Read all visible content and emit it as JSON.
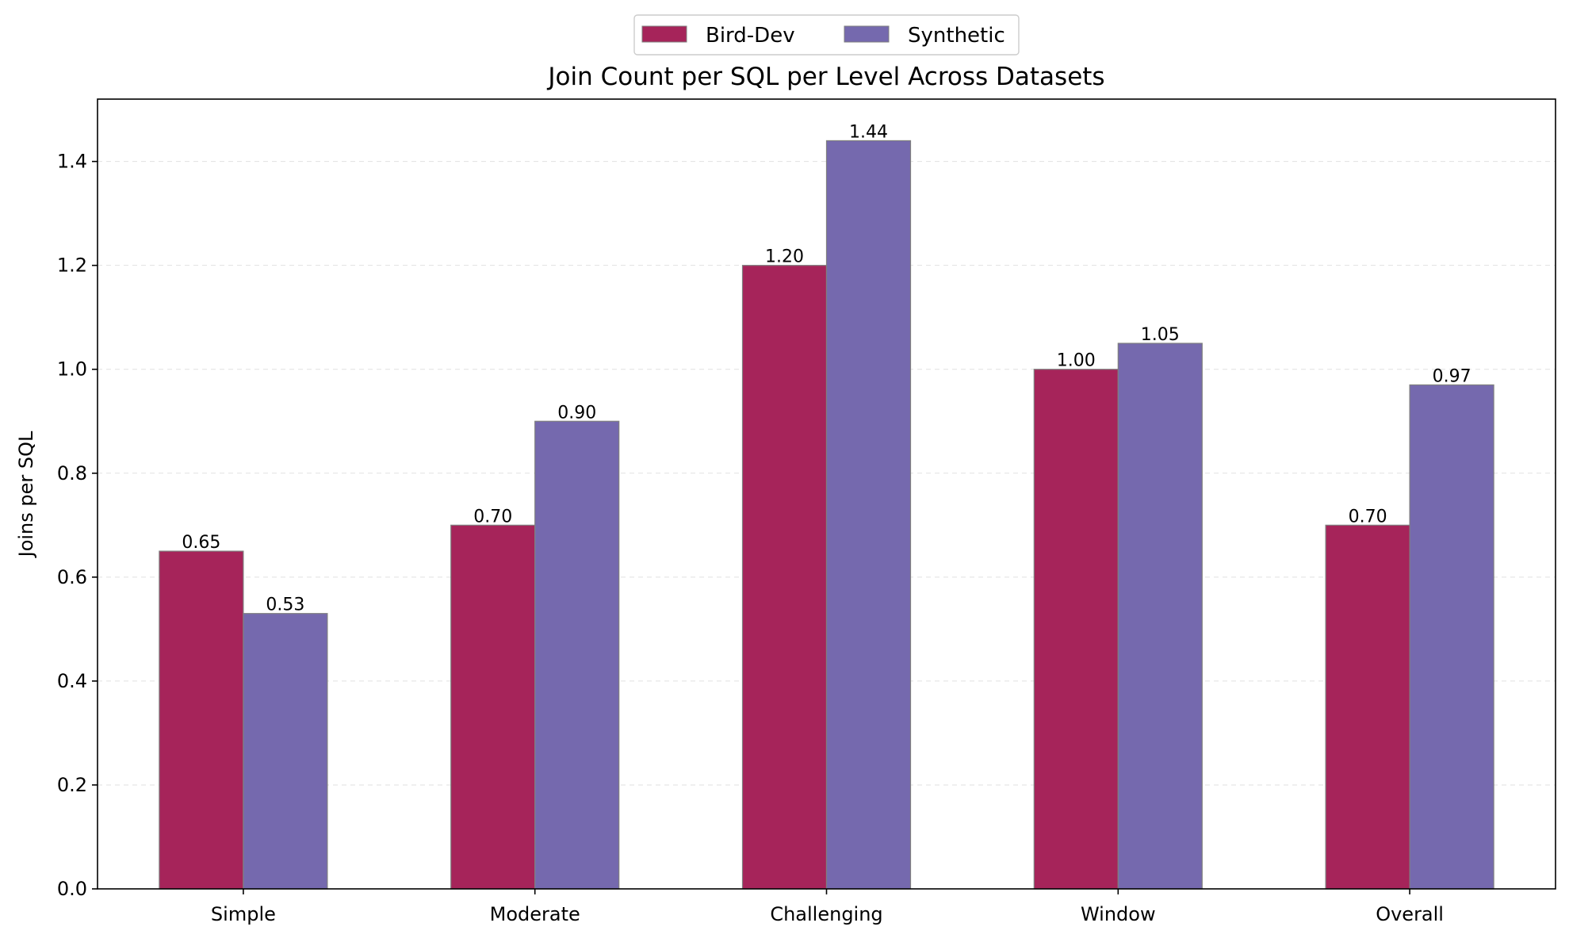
{
  "chart_data": {
    "type": "bar",
    "title": "Join Count per SQL per Level Across Datasets",
    "xlabel": "",
    "ylabel": "Joins per SQL",
    "categories": [
      "Simple",
      "Moderate",
      "Challenging",
      "Window",
      "Overall"
    ],
    "series": [
      {
        "name": "Bird-Dev",
        "color": "#a6245a",
        "values": [
          0.65,
          0.7,
          1.2,
          1.0,
          0.7
        ],
        "labels": [
          "0.65",
          "0.70",
          "1.20",
          "1.00",
          "0.70"
        ]
      },
      {
        "name": "Synthetic",
        "color": "#7569ae",
        "values": [
          0.53,
          0.9,
          1.44,
          1.05,
          0.97
        ],
        "labels": [
          "0.53",
          "0.90",
          "1.44",
          "1.05",
          "0.97"
        ]
      }
    ],
    "ylim": [
      0,
      1.52
    ],
    "yticks": [
      "0.0",
      "0.2",
      "0.4",
      "0.6",
      "0.8",
      "1.0",
      "1.2",
      "1.4"
    ],
    "grid": "y, dashed",
    "legend": "top-center"
  }
}
